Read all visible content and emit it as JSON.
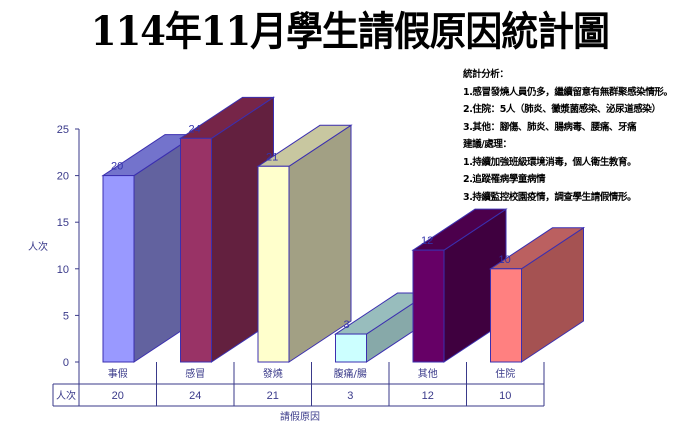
{
  "title": "114年11月學生請假原因統計圖",
  "notes": {
    "analysis_heading": "統計分析：",
    "analysis_items": [
      "1.感冒發燒人員仍多，繼續留意有無群聚感染情形。",
      "2.住院：5人（肺炎、黴漿菌感染、泌尿道感染）",
      "3.其他：腳傷、肺炎、腸病毒、腰痛、牙痛"
    ],
    "advice_heading": "建議/處理：",
    "advice_items": [
      "1.持續加強班級環境消毒，個人衛生教育。",
      "2.追蹤罹病學童病情",
      "3.持續監控校園疫情，調查學生請假情形。"
    ]
  },
  "chart_data": {
    "type": "bar",
    "style": "3d-column",
    "title": "114年11月學生請假原因統計圖",
    "categories": [
      "事假",
      "感冒",
      "發燒",
      "腹痛/腸",
      "其他",
      "住院"
    ],
    "series": [
      {
        "name": "人次",
        "values": [
          20,
          24,
          21,
          3,
          12,
          10
        ]
      }
    ],
    "xlabel": "請假原因",
    "ylabel": "人次",
    "ylim": [
      0,
      25
    ],
    "yticks": [
      0,
      5,
      10,
      15,
      20,
      25
    ],
    "grid": false,
    "legend": "data-table",
    "data_table": {
      "row_label": "人次",
      "values": [
        "20",
        "24",
        "21",
        "3",
        "12",
        "10"
      ]
    },
    "bar_colors": [
      {
        "front": "#9999FF",
        "side": "#62629F",
        "top": "#7373CC"
      },
      {
        "front": "#993366",
        "side": "#63203F",
        "top": "#762548"
      },
      {
        "front": "#FFFFCC",
        "side": "#A2A084",
        "top": "#C8C7A0"
      },
      {
        "front": "#CCFFFF",
        "side": "#87A9A9",
        "top": "#98BDBD"
      },
      {
        "front": "#660066",
        "side": "#3F003F",
        "top": "#4C004C"
      },
      {
        "front": "#FF8080",
        "side": "#A55252",
        "top": "#BB6060"
      }
    ],
    "value_labels": [
      "20",
      "24",
      "21",
      "3",
      "12",
      "10"
    ]
  }
}
